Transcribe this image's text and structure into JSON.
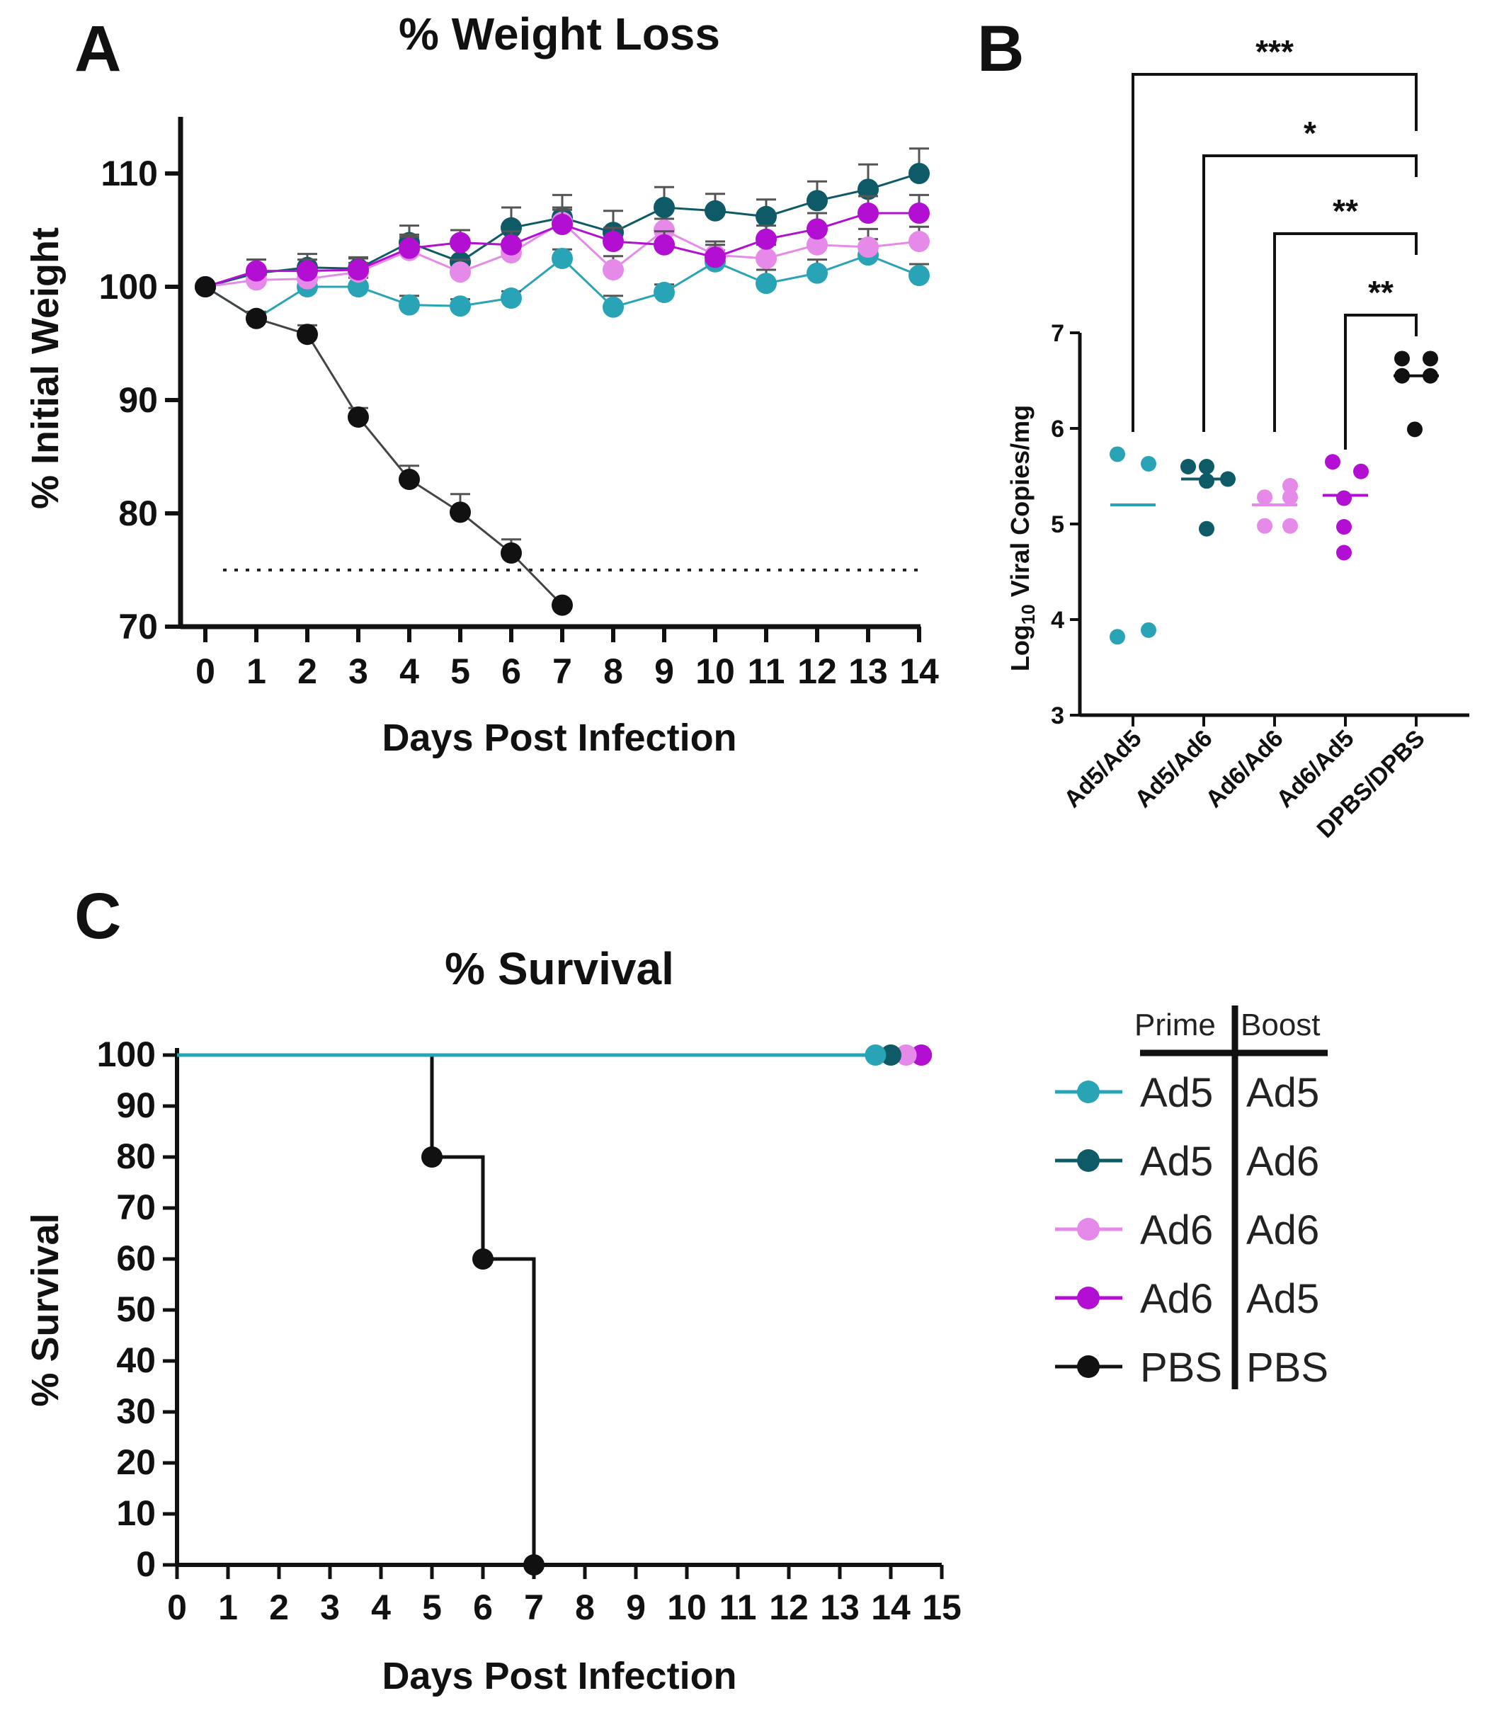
{
  "panels": {
    "A": {
      "letter": "A",
      "chart_data": {
        "type": "line",
        "title": "% Weight Loss",
        "xlabel": "Days Post Infection",
        "ylabel": "% Initial Weight",
        "xlim": [
          0,
          14
        ],
        "ylim": [
          70,
          115
        ],
        "xticks": [
          0,
          1,
          2,
          3,
          4,
          5,
          6,
          7,
          8,
          9,
          10,
          11,
          12,
          13,
          14
        ],
        "yticks": [
          70,
          80,
          90,
          100,
          110
        ],
        "threshold": 75,
        "series": [
          {
            "name": "Ad5/Ad5",
            "color": "#29a3b6",
            "x": [
              0,
              1,
              2,
              3,
              4,
              5,
              6,
              7,
              8,
              9,
              10,
              11,
              12,
              13,
              14
            ],
            "values": [
              100,
              97.2,
              100,
              100,
              98.4,
              98.3,
              99,
              102.5,
              98.2,
              99.5,
              102.2,
              100.3,
              101.2,
              102.8,
              101
            ],
            "errors": [
              0,
              0.6,
              0.8,
              0.8,
              0.8,
              0.6,
              0.6,
              0.8,
              1.0,
              0.7,
              1.0,
              1.2,
              1.2,
              1.4,
              1.0
            ]
          },
          {
            "name": "Ad5/Ad6",
            "color": "#0e5a66",
            "x": [
              0,
              1,
              2,
              3,
              4,
              5,
              6,
              7,
              8,
              9,
              10,
              11,
              12,
              13,
              14
            ],
            "values": [
              100,
              101.2,
              101.7,
              101.6,
              103.9,
              102.2,
              105.2,
              106.1,
              104.8,
              107,
              106.7,
              106.2,
              107.6,
              108.6,
              110
            ],
            "errors": [
              0,
              1.2,
              1.2,
              1.0,
              1.5,
              1.5,
              1.8,
              2.0,
              1.9,
              1.8,
              1.5,
              1.5,
              1.7,
              2.2,
              2.2
            ]
          },
          {
            "name": "Ad6/Ad6",
            "color": "#e58ae8",
            "x": [
              0,
              1,
              2,
              3,
              4,
              5,
              6,
              7,
              8,
              9,
              10,
              11,
              12,
              13,
              14
            ],
            "values": [
              100,
              100.6,
              100.7,
              101.3,
              103.2,
              101.3,
              103.0,
              105.7,
              101.5,
              105,
              102.8,
              102.5,
              103.7,
              103.5,
              104.0
            ],
            "errors": [
              0,
              1.0,
              1.0,
              0.8,
              1.2,
              1.1,
              1.0,
              1.3,
              1.2,
              1.0,
              1.2,
              1.2,
              1.4,
              1.6,
              1.3
            ]
          },
          {
            "name": "Ad6/Ad5",
            "color": "#b20fd3",
            "x": [
              0,
              1,
              2,
              3,
              4,
              5,
              6,
              7,
              8,
              9,
              10,
              11,
              12,
              13,
              14
            ],
            "values": [
              100,
              101.4,
              101.4,
              101.5,
              103.4,
              103.9,
              103.7,
              105.5,
              104.0,
              103.7,
              102.6,
              104.2,
              105.1,
              106.5,
              106.5
            ],
            "errors": [
              0,
              1.0,
              1.0,
              1.0,
              1.2,
              1.1,
              1.2,
              1.3,
              1.2,
              1.2,
              1.1,
              1.2,
              1.4,
              1.5,
              1.6
            ]
          },
          {
            "name": "PBS/PBS",
            "color": "#111111",
            "x": [
              0,
              1,
              2,
              3,
              4,
              5,
              6,
              7
            ],
            "values": [
              100,
              97.2,
              95.8,
              88.5,
              83,
              80.1,
              76.5,
              71.9
            ],
            "errors": [
              0,
              0.5,
              0.8,
              0.8,
              1.2,
              1.6,
              1.2,
              0
            ]
          }
        ]
      }
    },
    "B": {
      "letter": "B",
      "chart_data": {
        "type": "scatter",
        "title": "",
        "xlabel": "",
        "ylabel_prefix": "Log",
        "ylabel_sub": "10",
        "ylabel_rest": " Viral Copies/mg",
        "ylim": [
          3,
          7
        ],
        "yticks": [
          3,
          4,
          5,
          6,
          7
        ],
        "categories": [
          "Ad5/Ad5",
          "Ad5/Ad6",
          "Ad6/Ad6",
          "Ad6/Ad5",
          "DPBS/DPBS"
        ],
        "colors": [
          "#29a3b6",
          "#0e5a66",
          "#e58ae8",
          "#b20fd3",
          "#111111"
        ],
        "points": [
          [
            5.73,
            5.63,
            3.82,
            3.89
          ],
          [
            5.6,
            5.6,
            5.45,
            5.47,
            4.95
          ],
          [
            5.4,
            5.28,
            5.28,
            4.98,
            4.98
          ],
          [
            5.65,
            5.55,
            5.27,
            4.97,
            4.7
          ],
          [
            6.73,
            6.73,
            6.55,
            6.55,
            5.99
          ]
        ],
        "medians": [
          5.2,
          5.47,
          5.2,
          5.3,
          6.55
        ],
        "comparisons": [
          {
            "from": 0,
            "to": 4,
            "label": "***"
          },
          {
            "from": 1,
            "to": 4,
            "label": "*"
          },
          {
            "from": 2,
            "to": 4,
            "label": "**"
          },
          {
            "from": 3,
            "to": 4,
            "label": "**"
          }
        ]
      }
    },
    "C": {
      "letter": "C",
      "chart_data": {
        "type": "line",
        "title": "% Survival",
        "xlabel": "Days Post  Infection",
        "ylabel": "% Survival",
        "xlim": [
          0,
          15
        ],
        "ylim": [
          0,
          100
        ],
        "xticks": [
          0,
          1,
          2,
          3,
          4,
          5,
          6,
          7,
          8,
          9,
          10,
          11,
          12,
          13,
          14,
          15
        ],
        "yticks": [
          0,
          10,
          20,
          30,
          40,
          50,
          60,
          70,
          80,
          90,
          100
        ],
        "series": [
          {
            "name": "Ad5/Ad5",
            "color": "#29a3b6",
            "x": [
              0,
              13.7
            ],
            "values": [
              100,
              100
            ],
            "end_marker": true
          },
          {
            "name": "Ad5/Ad6",
            "color": "#0e5a66",
            "x": [
              0,
              14.0
            ],
            "values": [
              100,
              100
            ],
            "end_marker": true
          },
          {
            "name": "Ad6/Ad6",
            "color": "#e58ae8",
            "x": [
              0,
              14.3
            ],
            "values": [
              100,
              100
            ],
            "end_marker": true
          },
          {
            "name": "Ad6/Ad5",
            "color": "#b20fd3",
            "x": [
              0,
              14.6
            ],
            "values": [
              100,
              100
            ],
            "end_marker": true
          },
          {
            "name": "PBS",
            "color": "#111111",
            "step": true,
            "x": [
              0,
              5,
              6,
              7
            ],
            "values": [
              100,
              80,
              60,
              0
            ],
            "markers": [
              [
                5,
                80
              ],
              [
                6,
                60
              ],
              [
                7,
                0
              ]
            ]
          }
        ]
      }
    }
  },
  "legend": {
    "header_prime": "Prime",
    "header_boost": "Boost",
    "rows": [
      {
        "prime": "Ad5",
        "boost": "Ad5",
        "color": "#29a3b6"
      },
      {
        "prime": "Ad5",
        "boost": "Ad6",
        "color": "#0e5a66"
      },
      {
        "prime": "Ad6",
        "boost": "Ad6",
        "color": "#e58ae8"
      },
      {
        "prime": "Ad6",
        "boost": "Ad5",
        "color": "#b20fd3"
      },
      {
        "prime": "PBS",
        "boost": "PBS",
        "color": "#111111"
      }
    ]
  }
}
